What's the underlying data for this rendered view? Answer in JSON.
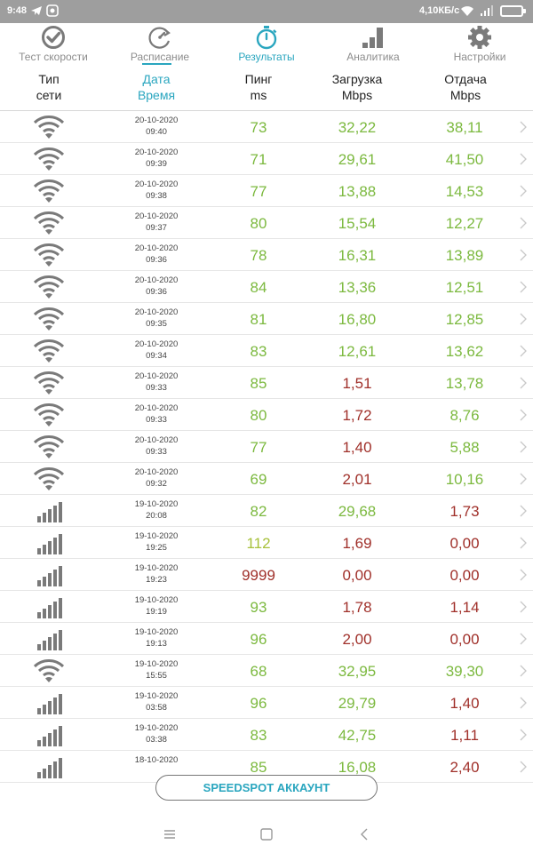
{
  "status_bar": {
    "time": "9:48",
    "network_speed": "4,10КБ/с"
  },
  "tabs": [
    {
      "label": "Тест скорости",
      "icon": "speedometer-check-icon",
      "active": false
    },
    {
      "label": "Расписание",
      "icon": "schedule-refresh-icon",
      "active": false
    },
    {
      "label": "Результаты",
      "icon": "stopwatch-icon",
      "active": true
    },
    {
      "label": "Аналитика",
      "icon": "bar-chart-icon",
      "active": false
    },
    {
      "label": "Настройки",
      "icon": "gear-icon",
      "active": false
    }
  ],
  "columns": {
    "type": [
      "Тип",
      "сети"
    ],
    "date": [
      "Дата",
      "Время"
    ],
    "ping": [
      "Пинг",
      "ms"
    ],
    "download": [
      "Загрузка",
      "Mbps"
    ],
    "upload": [
      "Отдача",
      "Mbps"
    ]
  },
  "rows": [
    {
      "type": "wifi",
      "date": "20-10-2020",
      "time": "09:40",
      "ping": "73",
      "ping_q": "good",
      "download": "32,22",
      "dl_q": "good",
      "upload": "38,11",
      "ul_q": "good"
    },
    {
      "type": "wifi",
      "date": "20-10-2020",
      "time": "09:39",
      "ping": "71",
      "ping_q": "good",
      "download": "29,61",
      "dl_q": "good",
      "upload": "41,50",
      "ul_q": "good"
    },
    {
      "type": "wifi",
      "date": "20-10-2020",
      "time": "09:38",
      "ping": "77",
      "ping_q": "good",
      "download": "13,88",
      "dl_q": "good",
      "upload": "14,53",
      "ul_q": "good"
    },
    {
      "type": "wifi",
      "date": "20-10-2020",
      "time": "09:37",
      "ping": "80",
      "ping_q": "good",
      "download": "15,54",
      "dl_q": "good",
      "upload": "12,27",
      "ul_q": "good"
    },
    {
      "type": "wifi",
      "date": "20-10-2020",
      "time": "09:36",
      "ping": "78",
      "ping_q": "good",
      "download": "16,31",
      "dl_q": "good",
      "upload": "13,89",
      "ul_q": "good"
    },
    {
      "type": "wifi",
      "date": "20-10-2020",
      "time": "09:36",
      "ping": "84",
      "ping_q": "good",
      "download": "13,36",
      "dl_q": "good",
      "upload": "12,51",
      "ul_q": "good"
    },
    {
      "type": "wifi",
      "date": "20-10-2020",
      "time": "09:35",
      "ping": "81",
      "ping_q": "good",
      "download": "16,80",
      "dl_q": "good",
      "upload": "12,85",
      "ul_q": "good"
    },
    {
      "type": "wifi",
      "date": "20-10-2020",
      "time": "09:34",
      "ping": "83",
      "ping_q": "good",
      "download": "12,61",
      "dl_q": "good",
      "upload": "13,62",
      "ul_q": "good"
    },
    {
      "type": "wifi",
      "date": "20-10-2020",
      "time": "09:33",
      "ping": "85",
      "ping_q": "good",
      "download": "1,51",
      "dl_q": "bad",
      "upload": "13,78",
      "ul_q": "good"
    },
    {
      "type": "wifi",
      "date": "20-10-2020",
      "time": "09:33",
      "ping": "80",
      "ping_q": "good",
      "download": "1,72",
      "dl_q": "bad",
      "upload": "8,76",
      "ul_q": "good"
    },
    {
      "type": "wifi",
      "date": "20-10-2020",
      "time": "09:33",
      "ping": "77",
      "ping_q": "good",
      "download": "1,40",
      "dl_q": "bad",
      "upload": "5,88",
      "ul_q": "good"
    },
    {
      "type": "wifi",
      "date": "20-10-2020",
      "time": "09:32",
      "ping": "69",
      "ping_q": "good",
      "download": "2,01",
      "dl_q": "bad",
      "upload": "10,16",
      "ul_q": "good"
    },
    {
      "type": "cellular",
      "date": "19-10-2020",
      "time": "20:08",
      "ping": "82",
      "ping_q": "good",
      "download": "29,68",
      "dl_q": "good",
      "upload": "1,73",
      "ul_q": "bad"
    },
    {
      "type": "cellular",
      "date": "19-10-2020",
      "time": "19:25",
      "ping": "112",
      "ping_q": "mid",
      "download": "1,69",
      "dl_q": "bad",
      "upload": "0,00",
      "ul_q": "bad"
    },
    {
      "type": "cellular",
      "date": "19-10-2020",
      "time": "19:23",
      "ping": "9999",
      "ping_q": "bad",
      "download": "0,00",
      "dl_q": "bad",
      "upload": "0,00",
      "ul_q": "bad"
    },
    {
      "type": "cellular",
      "date": "19-10-2020",
      "time": "19:19",
      "ping": "93",
      "ping_q": "good",
      "download": "1,78",
      "dl_q": "bad",
      "upload": "1,14",
      "ul_q": "bad"
    },
    {
      "type": "cellular",
      "date": "19-10-2020",
      "time": "19:13",
      "ping": "96",
      "ping_q": "good",
      "download": "2,00",
      "dl_q": "bad",
      "upload": "0,00",
      "ul_q": "bad"
    },
    {
      "type": "wifi",
      "date": "19-10-2020",
      "time": "15:55",
      "ping": "68",
      "ping_q": "good",
      "download": "32,95",
      "dl_q": "good",
      "upload": "39,30",
      "ul_q": "good"
    },
    {
      "type": "cellular",
      "date": "19-10-2020",
      "time": "03:58",
      "ping": "96",
      "ping_q": "good",
      "download": "29,79",
      "dl_q": "good",
      "upload": "1,40",
      "ul_q": "bad"
    },
    {
      "type": "cellular",
      "date": "19-10-2020",
      "time": "03:38",
      "ping": "83",
      "ping_q": "good",
      "download": "42,75",
      "dl_q": "good",
      "upload": "1,11",
      "ul_q": "bad"
    },
    {
      "type": "cellular",
      "date": "18-10-2020",
      "time": "",
      "ping": "85",
      "ping_q": "good",
      "download": "16,08",
      "dl_q": "good",
      "upload": "2,40",
      "ul_q": "bad"
    }
  ],
  "account_button": "SPEEDSPOT АККАУНТ",
  "colors": {
    "accent": "#2aa6bf",
    "good": "#7cb93f",
    "mid": "#a7c13a",
    "bad": "#a0302a",
    "icon_gray": "#7a7a7a"
  }
}
